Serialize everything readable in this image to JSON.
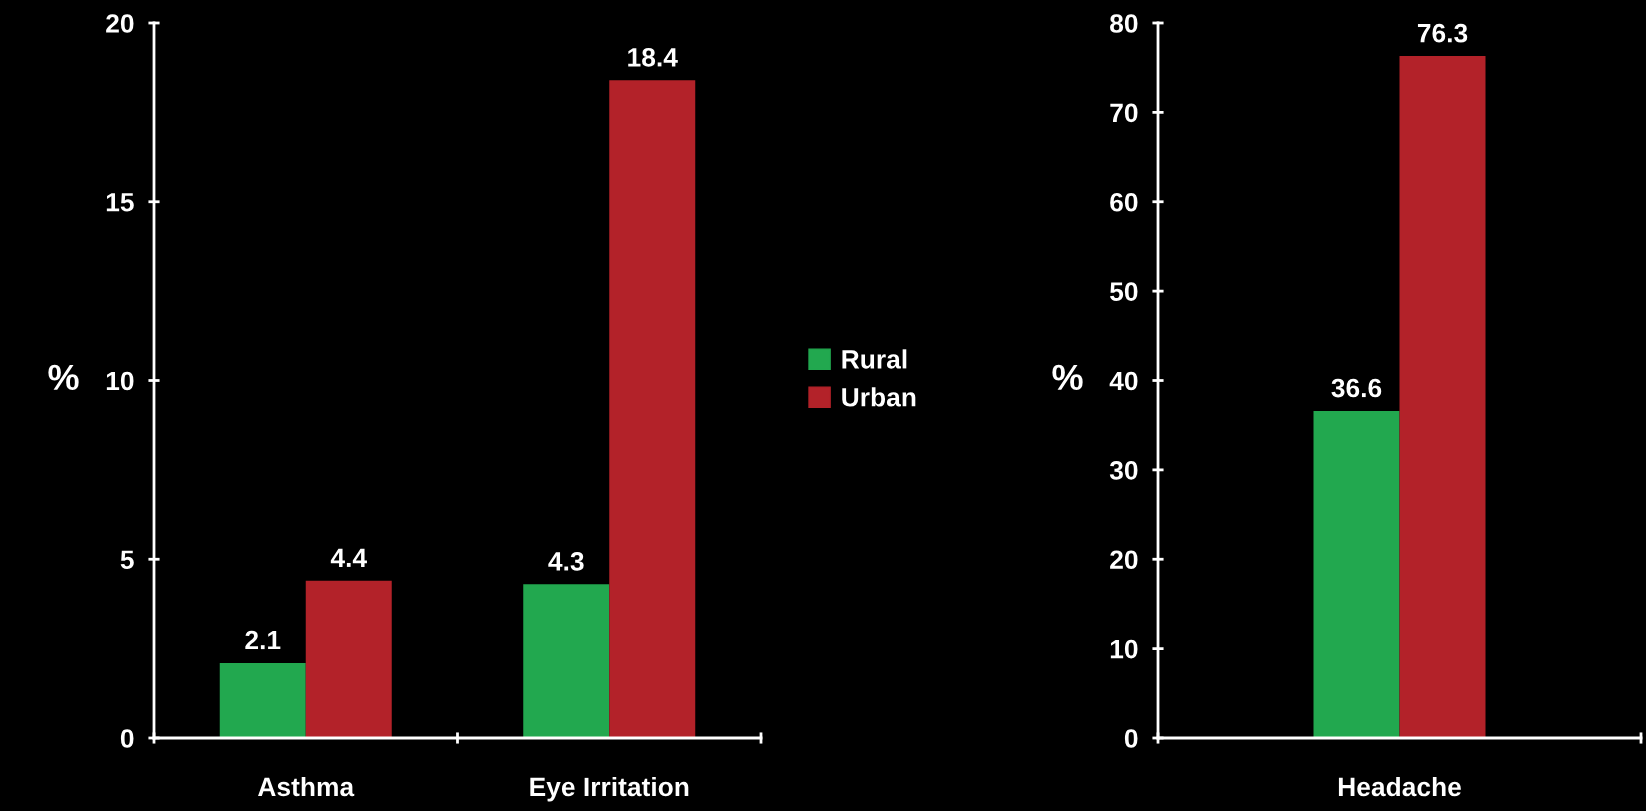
{
  "chart_data": [
    {
      "type": "bar",
      "categories": [
        "Asthma",
        "Eye Irritation"
      ],
      "ylabel": "%",
      "ylim": [
        0,
        20
      ],
      "yticks": [
        0,
        5,
        10,
        15,
        20
      ],
      "data_labels": true,
      "grid": false,
      "legend": "right",
      "series": [
        {
          "name": "Rural",
          "color": "#22a84f",
          "values": [
            2.1,
            4.3
          ]
        },
        {
          "name": "Urban",
          "color": "#b32229",
          "values": [
            4.4,
            18.4
          ]
        }
      ]
    },
    {
      "type": "bar",
      "categories": [
        "Headache"
      ],
      "ylabel": "%",
      "ylim": [
        0,
        80
      ],
      "yticks": [
        0,
        10,
        20,
        30,
        40,
        50,
        60,
        70,
        80
      ],
      "data_labels": true,
      "grid": false,
      "series": [
        {
          "color": "#22a84f",
          "values": [
            36.6
          ]
        },
        {
          "color": "#b32229",
          "values": [
            76.3
          ]
        }
      ]
    }
  ]
}
